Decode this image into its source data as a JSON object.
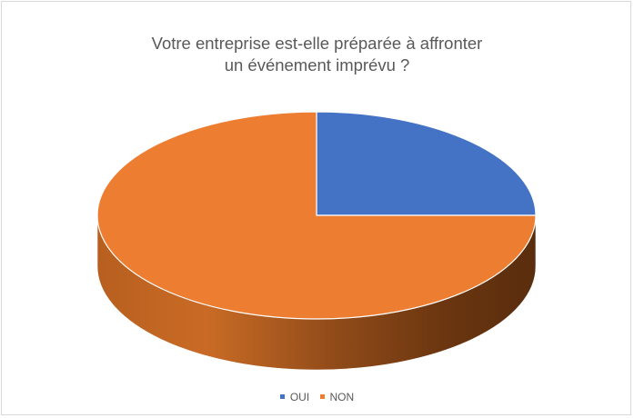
{
  "chart_data": {
    "type": "pie",
    "title_lines": [
      "Votre entreprise est-elle préparée à affronter",
      "un événement imprévu ?"
    ],
    "categories": [
      "OUI",
      "NON"
    ],
    "values": [
      25,
      75
    ],
    "colors": [
      "#4472C4",
      "#ED7D31"
    ],
    "legend_position": "bottom",
    "style": "3d"
  }
}
